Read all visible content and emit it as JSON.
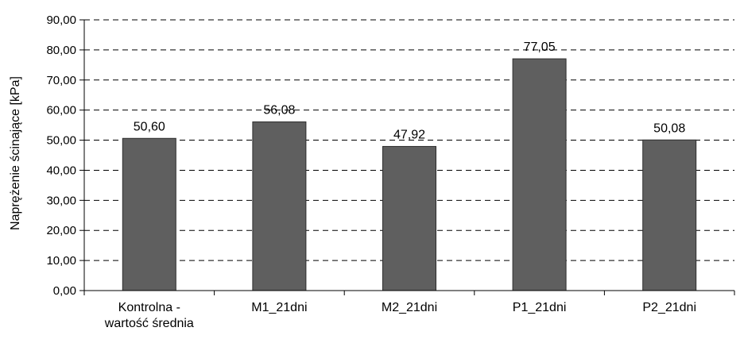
{
  "chart_data": {
    "type": "bar",
    "categories": [
      [
        "Kontrolna -",
        "wartość średnia"
      ],
      [
        "M1_21dni"
      ],
      [
        "M2_21dni"
      ],
      [
        "P1_21dni"
      ],
      [
        "P2_21dni"
      ]
    ],
    "values": [
      50.6,
      56.08,
      47.92,
      77.05,
      50.08
    ],
    "data_labels": [
      "50,60",
      "56,08",
      "47,92",
      "77,05",
      "50,08"
    ],
    "ylabel": "Naprężenie ścinające [kPa]",
    "xlabel": "",
    "title": "",
    "ylim": [
      0,
      90
    ],
    "ytick_step": 10,
    "ytick_labels": [
      "0,00",
      "10,00",
      "20,00",
      "30,00",
      "40,00",
      "50,00",
      "60,00",
      "70,00",
      "80,00",
      "90,00"
    ],
    "grid": "horizontal dashed",
    "legend": "none",
    "colors": {
      "bar_fill": "#5f5f5f",
      "bar_stroke": "#2e2e2e",
      "grid": "#000000",
      "axis": "#000000"
    }
  }
}
